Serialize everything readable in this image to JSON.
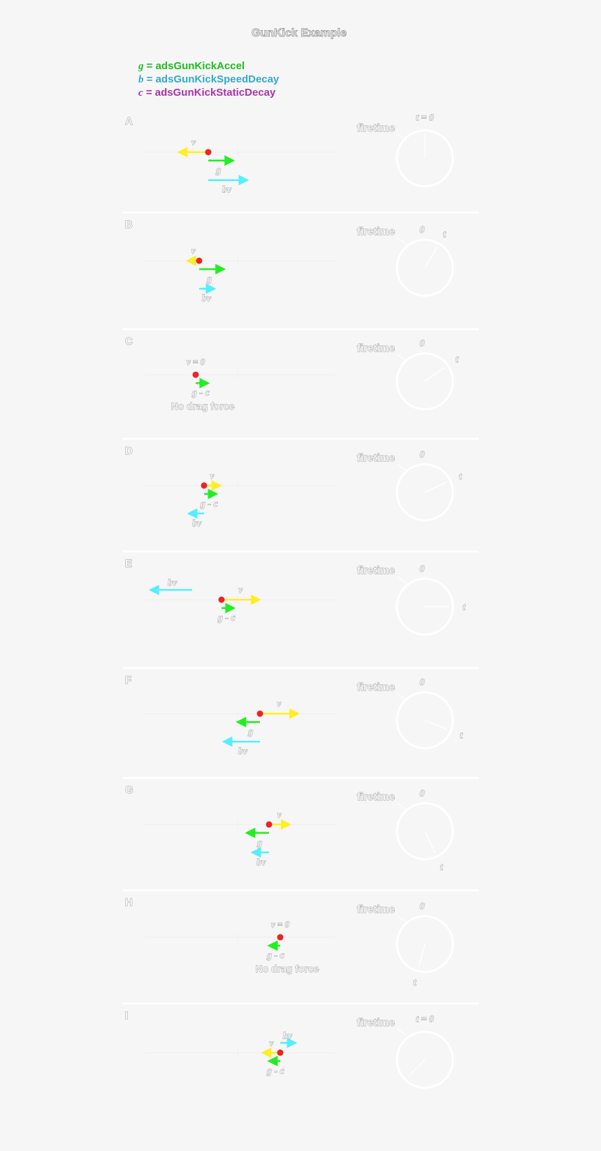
{
  "title": "GunKick Example",
  "legend": [
    {
      "sym": "g",
      "text": " = adsGunKickAccel",
      "color": "#22bb22"
    },
    {
      "sym": "b",
      "text": " = adsGunKickSpeedDecay",
      "color": "#33aacc"
    },
    {
      "sym": "c",
      "text": " = adsGunKickStaticDecay",
      "color": "#aa33aa"
    }
  ],
  "colors": {
    "velocity": "#ffee22",
    "accel": "#22ee22",
    "drag": "#55eeff",
    "point": "#ee2222",
    "guide": "#eeeeee",
    "clock": "#ffffff",
    "panel_bg": "#f6f6f6",
    "text_outline": "#9a9a9a"
  },
  "clock_labels": {
    "firetime": "firetime",
    "zero": "0",
    "t": "t",
    "t_zero": "t = 0"
  },
  "panels": [
    {
      "id": "A",
      "v_label": "v",
      "v": -1,
      "accel_label": "g",
      "accel": 1,
      "drag_label": "bv",
      "drag": 1.4,
      "note": "",
      "clock_hand": "t = 0"
    },
    {
      "id": "B",
      "v_label": "v",
      "v": -0.4,
      "accel_label": "g",
      "accel": 1,
      "drag_label": "bv",
      "drag": 0.55,
      "note": "",
      "clock_hand": "t"
    },
    {
      "id": "C",
      "v_label": "v = 0",
      "v": 0,
      "accel_label": "g - c",
      "accel": 0.5,
      "drag_label": "",
      "drag": 0,
      "note": "No drag force",
      "clock_hand": "t"
    },
    {
      "id": "D",
      "v_label": "v",
      "v": 0.55,
      "accel_label": "g - c",
      "accel": 0.5,
      "drag_label": "bv",
      "drag": -0.55,
      "note": "",
      "clock_hand": "t"
    },
    {
      "id": "E",
      "v_label": "v",
      "v": 1.3,
      "accel_label": "g - c",
      "accel": 0.5,
      "drag_label": "bv",
      "drag": -1.5,
      "note": "",
      "clock_hand": "t"
    },
    {
      "id": "F",
      "v_label": "v",
      "v": 1.3,
      "accel_label": "g",
      "accel": -0.9,
      "drag_label": "bv",
      "drag": -1.3,
      "note": "",
      "clock_hand": "t"
    },
    {
      "id": "G",
      "v_label": "v",
      "v": 0.7,
      "accel_label": "g",
      "accel": -0.9,
      "drag_label": "bv",
      "drag": -0.6,
      "note": "",
      "clock_hand": "t"
    },
    {
      "id": "H",
      "v_label": "v = 0",
      "v": 0,
      "accel_label": "g - c",
      "accel": -0.45,
      "drag_label": "",
      "drag": 0,
      "note": "No drag force",
      "clock_hand": "t"
    },
    {
      "id": "I",
      "v_label": "v",
      "v": -0.6,
      "accel_label": "g - c",
      "accel": -0.45,
      "drag_label": "bv",
      "drag": 0.55,
      "note": "",
      "clock_hand": "t"
    }
  ]
}
